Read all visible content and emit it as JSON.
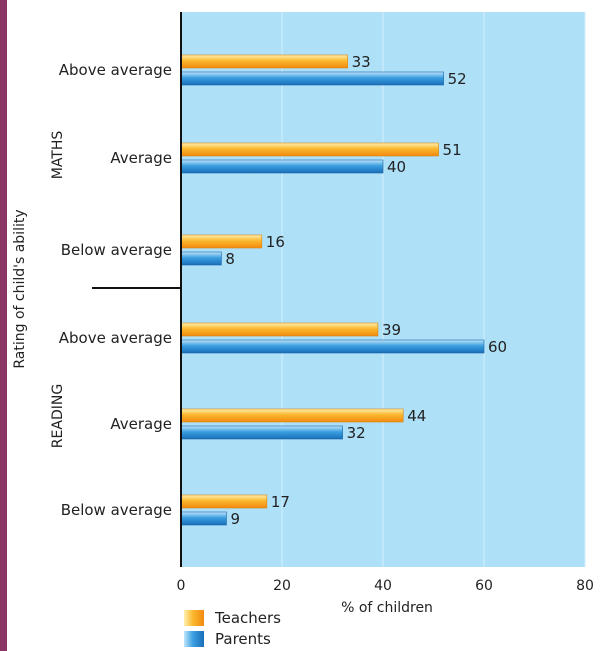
{
  "chart_data": {
    "type": "bar",
    "orientation": "horizontal",
    "xlabel": "% of children",
    "ylabel": "Rating of child's ability",
    "xlim": [
      0,
      80
    ],
    "x_ticks": [
      "0",
      "20",
      "40",
      "60",
      "80"
    ],
    "grid": true,
    "legend_position": "bottom-left",
    "groups": [
      {
        "label": "MATHS",
        "categories": [
          {
            "label": "Above average",
            "values": [
              33,
              52
            ]
          },
          {
            "label": "Average",
            "values": [
              51,
              40
            ]
          },
          {
            "label": "Below average",
            "values": [
              16,
              8
            ]
          }
        ]
      },
      {
        "label": "READING",
        "categories": [
          {
            "label": "Above average",
            "values": [
              39,
              60
            ]
          },
          {
            "label": "Average",
            "values": [
              44,
              32
            ]
          },
          {
            "label": "Below average",
            "values": [
              17,
              9
            ]
          }
        ]
      }
    ],
    "series": [
      {
        "name": "Teachers",
        "color": "#f7a928"
      },
      {
        "name": "Parents",
        "color": "#2d8ed6"
      }
    ],
    "background_color": "#aee0f8"
  }
}
